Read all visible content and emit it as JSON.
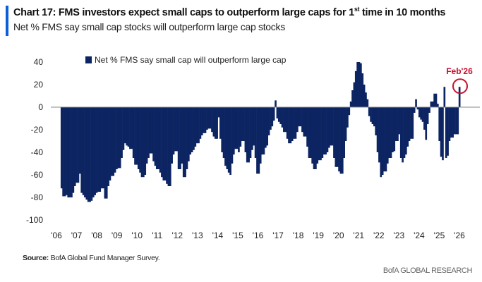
{
  "header": {
    "title_main": "Chart 17: FMS investors expect small caps to outperform large caps for 1",
    "title_sup": "st",
    "title_end": " time in 10 months",
    "subtitle": "Net % FMS say small cap stocks will outperform large cap stocks"
  },
  "footer": {
    "source_label": "Source:",
    "source_text": " BofA Global Fund Manager Survey.",
    "brand": "BofA GLOBAL RESEARCH"
  },
  "colors": {
    "bars": "#0c2461",
    "accent": "#0b5fd7",
    "annotation": "#c8102e",
    "zero_line": "#888888"
  },
  "chart_data": {
    "type": "bar",
    "frequency": "monthly",
    "title": "",
    "xlabel": "",
    "ylabel": "",
    "ylim": [
      -100,
      40
    ],
    "yticks": [
      40,
      20,
      0,
      -20,
      -40,
      -60,
      -80,
      -100
    ],
    "xticks": [
      "'06",
      "'07",
      "'08",
      "'09",
      "'10",
      "'11",
      "'12",
      "'13",
      "'14",
      "'15",
      "'16",
      "'17",
      "'18",
      "'19",
      "'20",
      "'21",
      "'22",
      "'23",
      "'24",
      "'25",
      "'26"
    ],
    "grid": false,
    "legend": {
      "position": "top-left",
      "entries": [
        "Net % FMS say small cap will outperform large cap"
      ]
    },
    "series": [
      {
        "name": "Net % FMS say small cap will outperform large cap",
        "values": [
          -72,
          -79,
          -79,
          -78,
          -80,
          -80,
          -80,
          -76,
          -70,
          -67,
          -67,
          -59,
          -76,
          -78,
          -80,
          -82,
          -84,
          -84,
          -83,
          -80,
          -78,
          -76,
          -75,
          -75,
          -72,
          -72,
          -81,
          -81,
          -70,
          -65,
          -61,
          -61,
          -58,
          -55,
          -54,
          -54,
          -45,
          -38,
          -32,
          -34,
          -35,
          -37,
          -37,
          -45,
          -51,
          -51,
          -55,
          -58,
          -62,
          -62,
          -60,
          -50,
          -45,
          -41,
          -41,
          -48,
          -52,
          -55,
          -55,
          -58,
          -62,
          -65,
          -65,
          -68,
          -70,
          -70,
          -50,
          -42,
          -39,
          -39,
          -55,
          -55,
          -50,
          -62,
          -62,
          -55,
          -48,
          -42,
          -40,
          -38,
          -35,
          -32,
          -32,
          -28,
          -25,
          -23,
          -23,
          -20,
          -19,
          -19,
          -22,
          -26,
          -28,
          -28,
          -9,
          -28,
          -40,
          -45,
          -52,
          -55,
          -58,
          -60,
          -50,
          -42,
          -37,
          -37,
          -40,
          -35,
          -30,
          -30,
          -40,
          -49,
          -49,
          -45,
          -38,
          -34,
          -45,
          -59,
          -59,
          -50,
          -42,
          -42,
          -36,
          -34,
          -25,
          -20,
          -17,
          -12,
          6,
          -10,
          -13,
          -15,
          -18,
          -22,
          -22,
          -28,
          -32,
          -32,
          -30,
          -28,
          -28,
          -22,
          -17,
          -17,
          -22,
          -26,
          -26,
          -35,
          -45,
          -45,
          -50,
          -55,
          -55,
          -50,
          -47,
          -47,
          -45,
          -42,
          -42,
          -40,
          -36,
          -34,
          -34,
          -45,
          -53,
          -53,
          -57,
          -59,
          -59,
          -45,
          -30,
          -18,
          -7,
          5,
          15,
          22,
          32,
          40,
          40,
          39,
          30,
          20,
          13,
          7,
          -8,
          -13,
          -15,
          -17,
          -25,
          -40,
          -49,
          -62,
          -60,
          -57,
          -57,
          -50,
          -45,
          -45,
          -40,
          -39,
          -30,
          -30,
          -24,
          -45,
          -49,
          -45,
          -42,
          -35,
          -30,
          -28,
          -28,
          -5,
          7,
          -2,
          -9,
          -11,
          -13,
          -20,
          -29,
          -15,
          -5,
          5,
          5,
          12,
          12,
          3,
          -30,
          -44,
          -47,
          18,
          -45,
          -43,
          -30,
          -27,
          -27,
          -24,
          -24,
          -24,
          18
        ]
      }
    ],
    "annotations": [
      {
        "label": "Feb'26",
        "value": 18,
        "style": "red-circle"
      }
    ]
  }
}
